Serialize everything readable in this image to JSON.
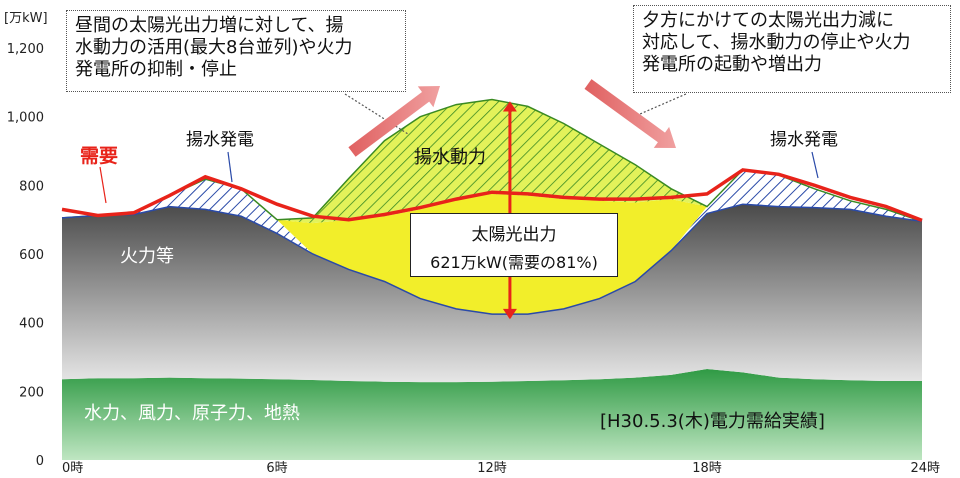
{
  "chart_data": {
    "type": "area",
    "unit_label": "[万kW]",
    "y_ticks": [
      0,
      200,
      400,
      600,
      800,
      1000,
      1200
    ],
    "y_tick_labels": [
      "0",
      "200",
      "400",
      "600",
      "800",
      "1,000",
      "1,200"
    ],
    "ylim": [
      0,
      1200
    ],
    "x_ticks": [
      0,
      6,
      12,
      18,
      24
    ],
    "x_tick_labels": [
      "0時",
      "6時",
      "12時",
      "18時",
      "24時"
    ],
    "xlim": [
      0,
      24
    ],
    "grid": false,
    "x": [
      0,
      1,
      2,
      3,
      4,
      5,
      6,
      7,
      8,
      9,
      10,
      11,
      12,
      13,
      14,
      15,
      16,
      17,
      18,
      19,
      20,
      21,
      22,
      23,
      24
    ],
    "series": [
      {
        "name": "水力、風力、原子力、地熱",
        "color": "#3aa84a",
        "values": [
          235,
          238,
          238,
          240,
          238,
          237,
          235,
          233,
          230,
          228,
          227,
          227,
          228,
          230,
          232,
          235,
          240,
          248,
          265,
          255,
          240,
          235,
          232,
          230,
          230
        ]
      },
      {
        "name": "火力等",
        "color": "#555555",
        "values": [
          705,
          712,
          715,
          738,
          730,
          710,
          660,
          600,
          555,
          520,
          470,
          440,
          425,
          425,
          440,
          470,
          520,
          610,
          718,
          745,
          738,
          735,
          730,
          710,
          695
        ]
      },
      {
        "name": "揚水発電",
        "color": "#2a4aa8",
        "values": [
          705,
          712,
          718,
          770,
          818,
          790,
          700,
          600,
          555,
          520,
          470,
          440,
          425,
          425,
          440,
          470,
          520,
          610,
          738,
          845,
          830,
          790,
          755,
          730,
          695
        ]
      },
      {
        "name": "太陽光出力",
        "color": "#f2ee2a",
        "values": [
          705,
          712,
          718,
          770,
          818,
          790,
          700,
          690,
          700,
          710,
          730,
          760,
          775,
          770,
          760,
          755,
          750,
          760,
          738,
          845,
          830,
          790,
          755,
          730,
          695
        ]
      },
      {
        "name": "揚水動力",
        "color": "#c7e02a",
        "values": [
          705,
          712,
          718,
          770,
          818,
          790,
          700,
          705,
          820,
          930,
          1000,
          1035,
          1050,
          1030,
          980,
          920,
          860,
          790,
          738,
          845,
          830,
          790,
          755,
          730,
          695
        ]
      },
      {
        "name": "需要",
        "color": "#e8231a",
        "values": [
          730,
          712,
          720,
          770,
          825,
          790,
          745,
          710,
          700,
          715,
          735,
          760,
          780,
          775,
          765,
          760,
          760,
          765,
          775,
          845,
          832,
          800,
          765,
          738,
          698
        ]
      }
    ],
    "annotations": {
      "label_thermal": "火力等",
      "label_base": "水力、風力、原子力、地熱",
      "label_pumped_gen_left": "揚水発電",
      "label_pumped_gen_right": "揚水発電",
      "label_pump_power": "揚水動力",
      "label_demand": "需要",
      "solar_title": "太陽光出力",
      "solar_value": "621万kW(需要の81%)",
      "record_label": "[H30.5.3(木)電力需給実績]",
      "callout_left": "昼間の太陽光出力増に対して、揚\n水動力の活用(最大8台並列)や火力\n発電所の抑制・停止",
      "callout_right": "夕方にかけての太陽光出力減に\n対応して、揚水動力の停止や火力\n発電所の起動や増出力"
    }
  }
}
